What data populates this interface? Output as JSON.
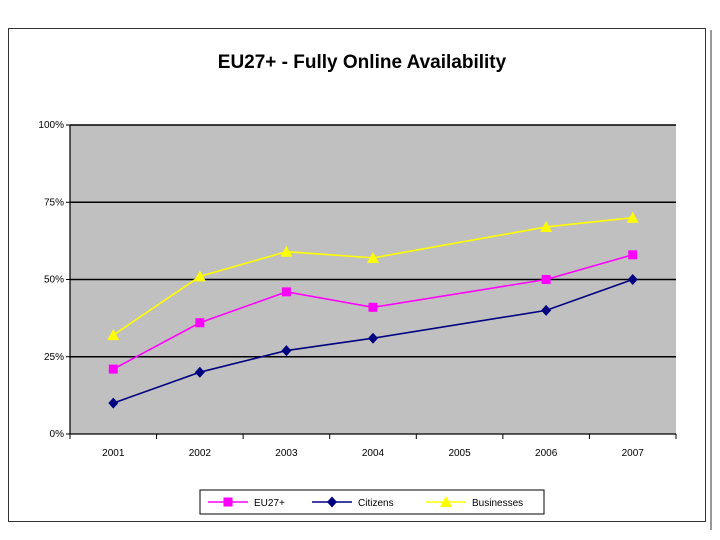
{
  "chart_data": {
    "type": "line",
    "title": "EU27+ - Fully Online Availability",
    "xlabel": "",
    "ylabel": "",
    "categories": [
      "2001",
      "2002",
      "2003",
      "2004",
      "2005",
      "2006",
      "2007"
    ],
    "y_ticks": [
      "0%",
      "25%",
      "50%",
      "75%",
      "100%"
    ],
    "ylim": [
      0,
      100
    ],
    "grid": true,
    "legend_position": "bottom",
    "plot_background": "#c0c0c0",
    "series": [
      {
        "name": "EU27+",
        "color": "#ff00ff",
        "marker": "square",
        "values": [
          21,
          36,
          46,
          41,
          null,
          50,
          58
        ]
      },
      {
        "name": "Citizens",
        "color": "#000080",
        "marker": "diamond",
        "values": [
          10,
          20,
          27,
          31,
          null,
          40,
          50
        ]
      },
      {
        "name": "Businesses",
        "color": "#ffff00",
        "marker": "triangle",
        "values": [
          32,
          51,
          59,
          57,
          null,
          67,
          70
        ]
      }
    ]
  }
}
